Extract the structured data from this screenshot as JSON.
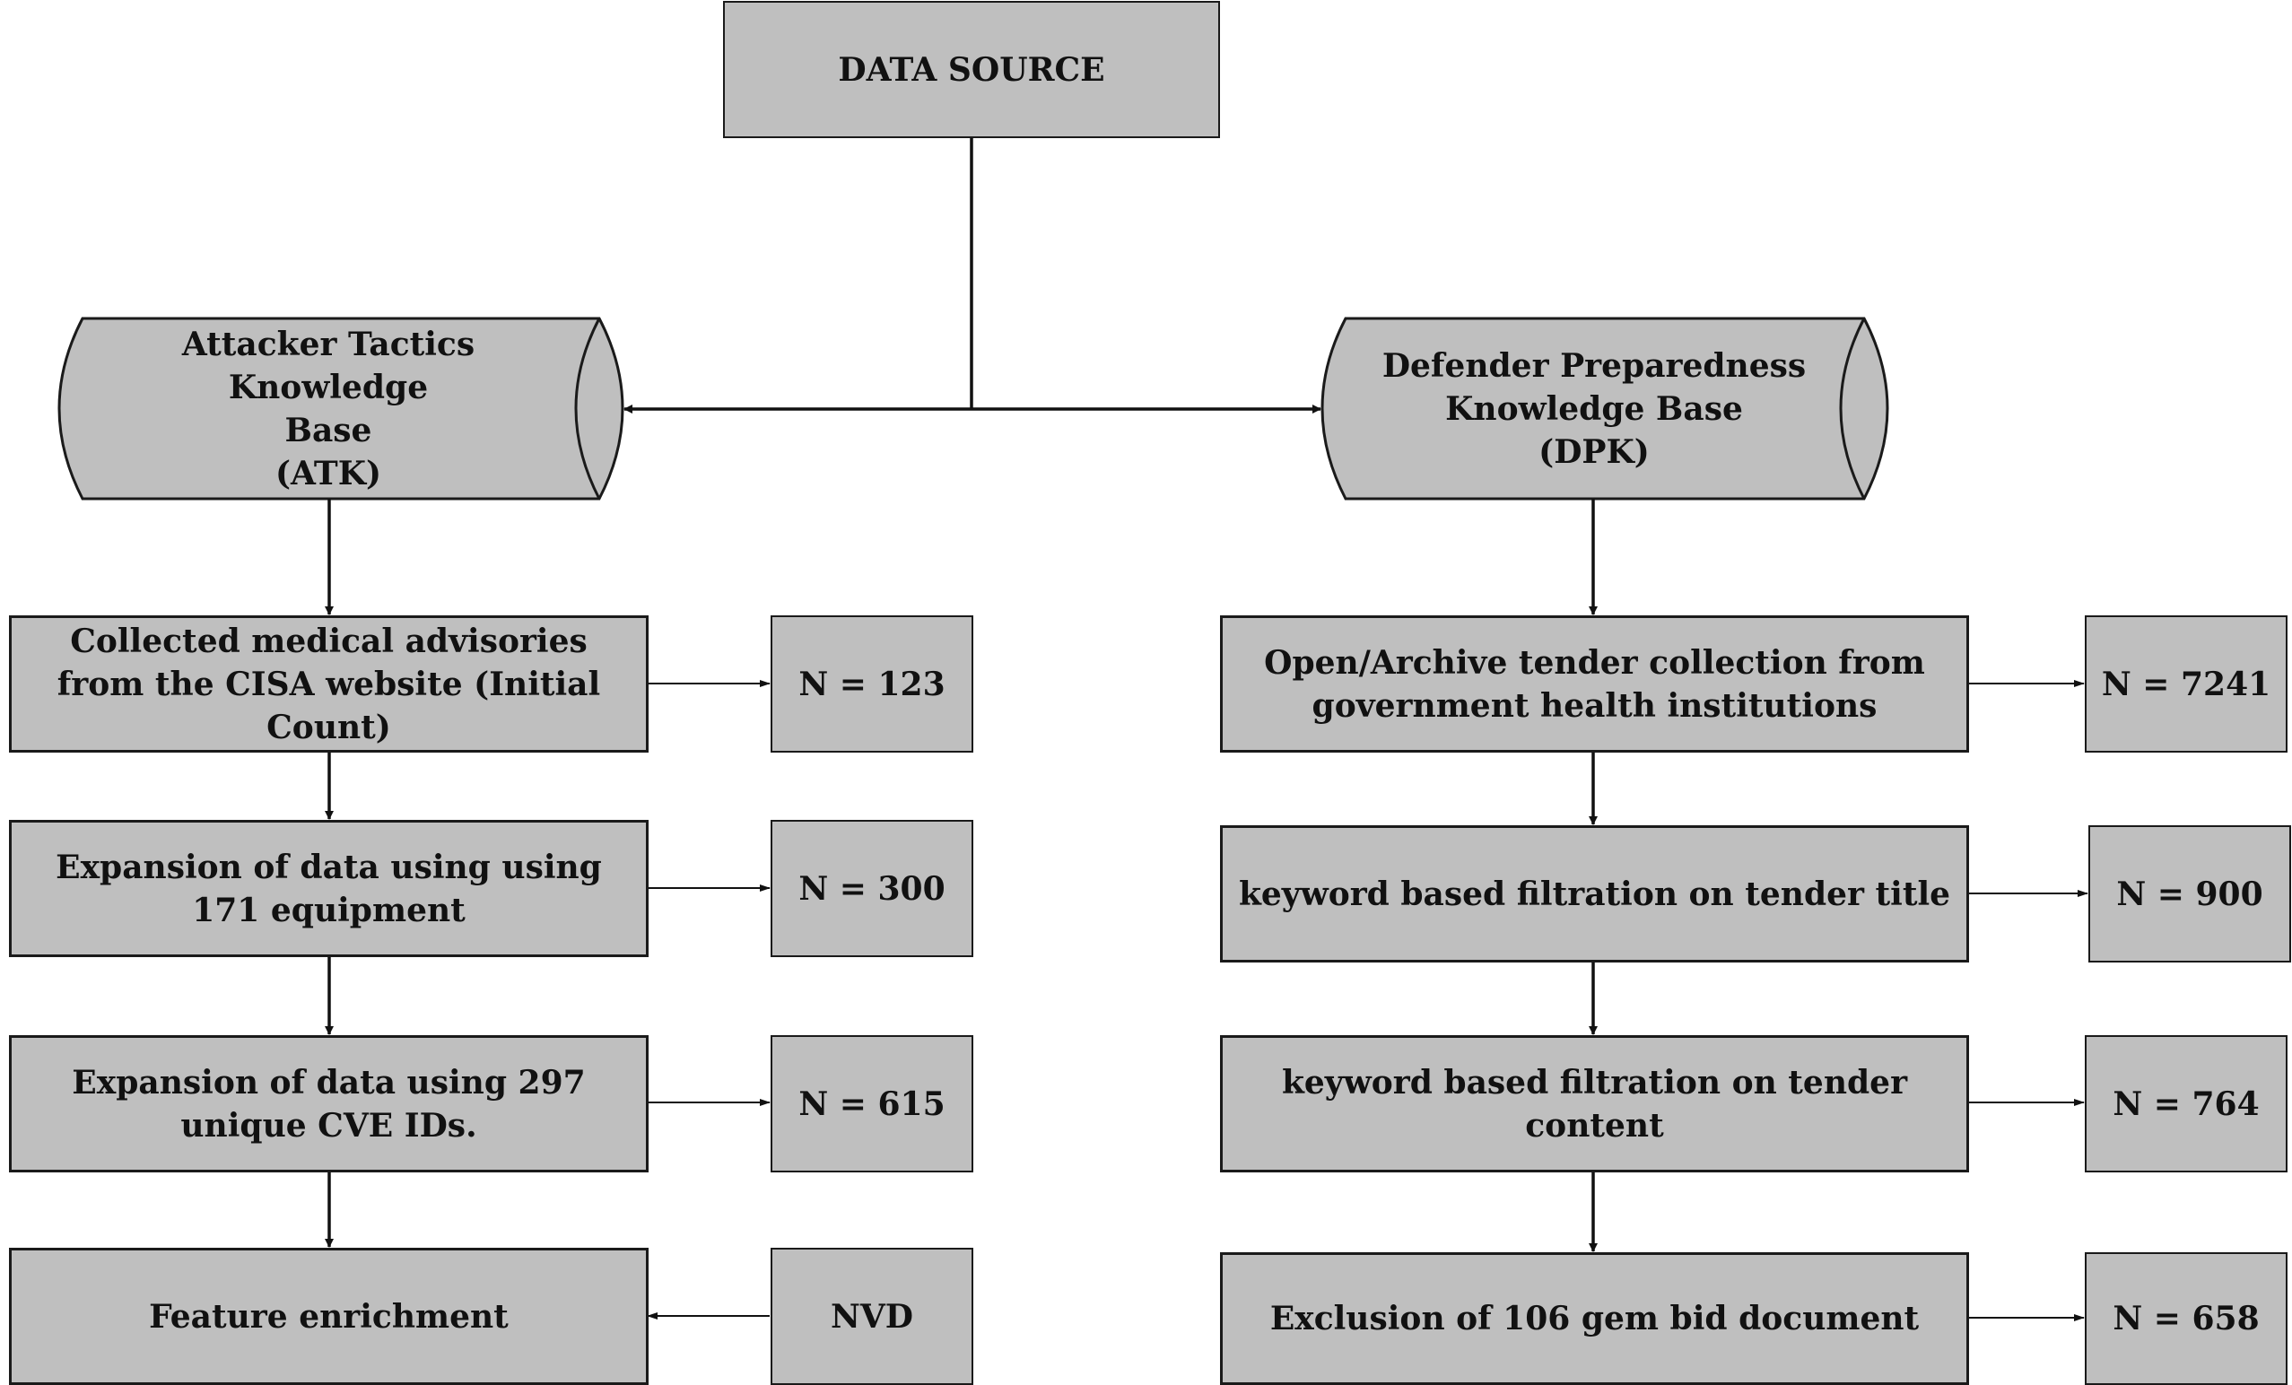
{
  "root": {
    "label": "DATA SOURCE"
  },
  "atk": {
    "title": "Attacker Tactics Knowledge\nBase\n(ATK)",
    "steps": [
      {
        "label": "Collected medical advisories from the CISA website (Initial Count)",
        "count": "N = 123"
      },
      {
        "label": "Expansion of data using using 171 equipment",
        "count": "N = 300"
      },
      {
        "label": "Expansion of data using  297 unique CVE IDs.",
        "count": "N = 615"
      },
      {
        "label": "Feature enrichment",
        "count": "NVD"
      }
    ]
  },
  "dpk": {
    "title": "Defender Preparedness\nKnowledge Base\n(DPK)",
    "steps": [
      {
        "label": "Open/Archive tender collection from government health institutions",
        "count": "N = 7241"
      },
      {
        "label": "keyword based filtration on tender title",
        "count": "N = 900"
      },
      {
        "label": "keyword based filtration on tender content",
        "count": "N = 764"
      },
      {
        "label": "Exclusion of 106 gem bid document",
        "count": "N = 658"
      }
    ]
  }
}
